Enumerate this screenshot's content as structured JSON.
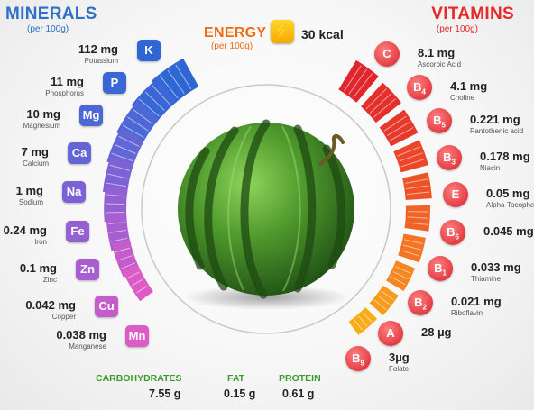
{
  "minerals": {
    "title": "MINERALS",
    "subtitle": "(per 100g)",
    "items": [
      {
        "value": "112 mg",
        "name": "Potassium",
        "symbol": "K",
        "color": "#2f66d4"
      },
      {
        "value": "11 mg",
        "name": "Phosphorus",
        "symbol": "P",
        "color": "#3a66d6"
      },
      {
        "value": "10 mg",
        "name": "Magnesium",
        "symbol": "Mg",
        "color": "#4b68d6"
      },
      {
        "value": "7 mg",
        "name": "Calcium",
        "symbol": "Ca",
        "color": "#6466d6"
      },
      {
        "value": "1 mg",
        "name": "Sodium",
        "symbol": "Na",
        "color": "#7c62d4"
      },
      {
        "value": "0.24 mg",
        "name": "Iron",
        "symbol": "Fe",
        "color": "#9460d2"
      },
      {
        "value": "0.1 mg",
        "name": "Zinc",
        "symbol": "Zn",
        "color": "#a85ed0"
      },
      {
        "value": "0.042 mg",
        "name": "Copper",
        "symbol": "Cu",
        "color": "#c45ccb"
      },
      {
        "value": "0.038 mg",
        "name": "Manganese",
        "symbol": "Mn",
        "color": "#dd5bc4"
      }
    ]
  },
  "vitamins": {
    "title": "VITAMINS",
    "subtitle": "(per 100g)",
    "items": [
      {
        "value": "8.1 mg",
        "name": "Ascorbic Acid",
        "symbol": "C",
        "sub": "",
        "color": "#e0262c"
      },
      {
        "value": "4.1 mg",
        "name": "Choline",
        "symbol": "B",
        "sub": "4",
        "color": "#e4302c"
      },
      {
        "value": "0.221 mg",
        "name": "Pantothenic acid",
        "symbol": "B",
        "sub": "5",
        "color": "#e7392b"
      },
      {
        "value": "0.178 mg",
        "name": "Niacin",
        "symbol": "B",
        "sub": "3",
        "color": "#eb452a"
      },
      {
        "value": "0.05 mg",
        "name": "Alpha-Tocopherol",
        "symbol": "E",
        "sub": "",
        "color": "#ee5328"
      },
      {
        "value": "0.045 mg",
        "name": "",
        "symbol": "B",
        "sub": "6",
        "color": "#f16226"
      },
      {
        "value": "0.033 mg",
        "name": "Thiamine",
        "symbol": "B",
        "sub": "1",
        "color": "#f47423"
      },
      {
        "value": "0.021 mg",
        "name": "Riboflavin",
        "symbol": "B",
        "sub": "2",
        "color": "#f68720"
      },
      {
        "value": "28 µg",
        "name": "",
        "symbol": "A",
        "sub": "",
        "color": "#f89b1c"
      },
      {
        "value": "3µg",
        "name": "Folate",
        "symbol": "B",
        "sub": "9",
        "color": "#faab18"
      }
    ]
  },
  "energy": {
    "title": "ENERGY",
    "subtitle": "(per 100g)",
    "value": "30 kcal",
    "icon": "lightning-bolt-icon"
  },
  "macros": [
    {
      "label": "CARBOHYDRATES",
      "value": "7.55 g"
    },
    {
      "label": "FAT",
      "value": "0.15 g"
    },
    {
      "label": "PROTEIN",
      "value": "0.61 g"
    }
  ],
  "colors": {
    "minerals": "#2e6fc7",
    "vitamins": "#e52a2a",
    "energy": "#f06a10",
    "macros": "#3c9a2e"
  }
}
